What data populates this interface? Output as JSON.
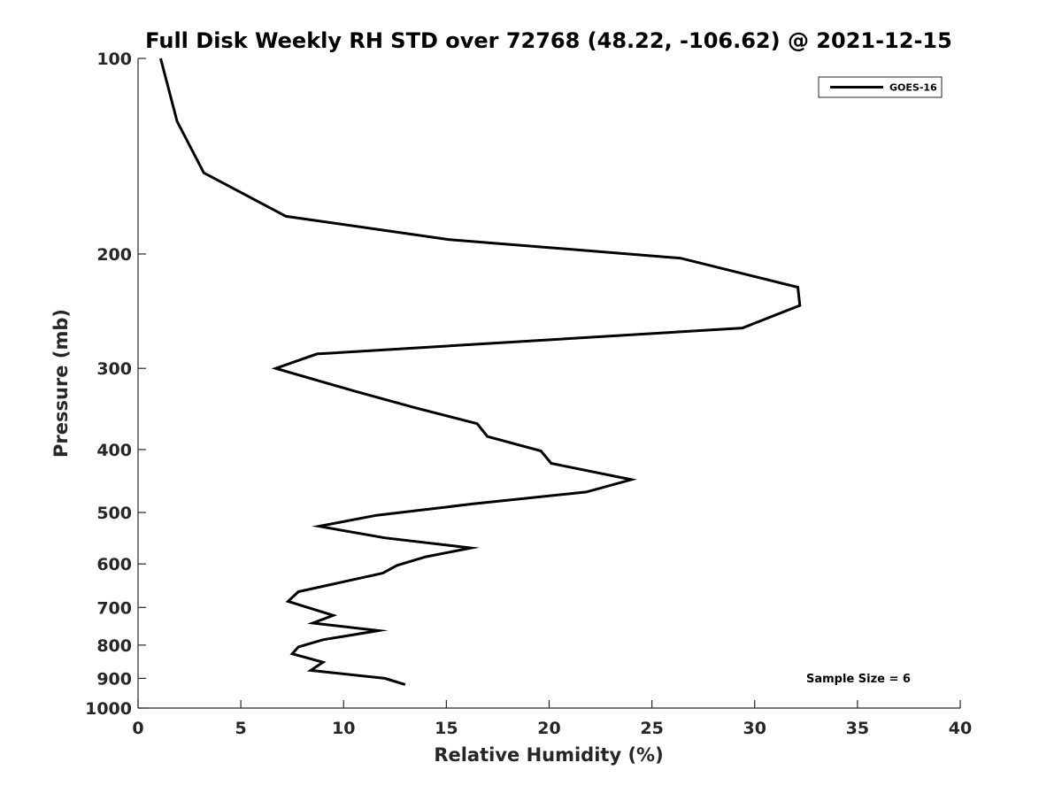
{
  "chart_data": {
    "type": "line",
    "title": "Full Disk Weekly RH STD over 72768 (48.22, -106.62) @ 2021-12-15",
    "xlabel": "Relative Humidity (%)",
    "ylabel": "Pressure (mb)",
    "xlim": [
      0,
      40
    ],
    "ylim": [
      100,
      1000
    ],
    "y_scale": "log",
    "y_reversed": true,
    "x_ticks": [
      "0",
      "5",
      "10",
      "15",
      "20",
      "25",
      "30",
      "35",
      "40"
    ],
    "y_ticks": [
      "100",
      "200",
      "300",
      "400",
      "500",
      "600",
      "700",
      "800",
      "900",
      "1000"
    ],
    "grid": false,
    "legend_position": "top-right",
    "annotation": "Sample Size = 6",
    "series": [
      {
        "name": "GOES-16",
        "color": "#000000",
        "points": [
          [
            1.1,
            100
          ],
          [
            1.9,
            125
          ],
          [
            3.2,
            150
          ],
          [
            7.2,
            175
          ],
          [
            15.1,
            190
          ],
          [
            26.4,
            203
          ],
          [
            32.1,
            225
          ],
          [
            32.2,
            240
          ],
          [
            29.4,
            260
          ],
          [
            8.7,
            285
          ],
          [
            6.7,
            300
          ],
          [
            10.5,
            325
          ],
          [
            13.5,
            345
          ],
          [
            16.5,
            365
          ],
          [
            17.0,
            382
          ],
          [
            19.6,
            402
          ],
          [
            20.1,
            420
          ],
          [
            24.0,
            445
          ],
          [
            21.8,
            465
          ],
          [
            16.3,
            485
          ],
          [
            11.6,
            505
          ],
          [
            8.8,
            525
          ],
          [
            12.0,
            547
          ],
          [
            16.2,
            567
          ],
          [
            14.0,
            585
          ],
          [
            12.6,
            603
          ],
          [
            11.9,
            620
          ],
          [
            7.8,
            662
          ],
          [
            7.3,
            685
          ],
          [
            9.5,
            720
          ],
          [
            8.5,
            740
          ],
          [
            11.7,
            760
          ],
          [
            9.0,
            785
          ],
          [
            7.8,
            805
          ],
          [
            7.5,
            825
          ],
          [
            9.0,
            850
          ],
          [
            8.4,
            875
          ],
          [
            12.0,
            900
          ],
          [
            13.0,
            920
          ]
        ]
      }
    ]
  }
}
